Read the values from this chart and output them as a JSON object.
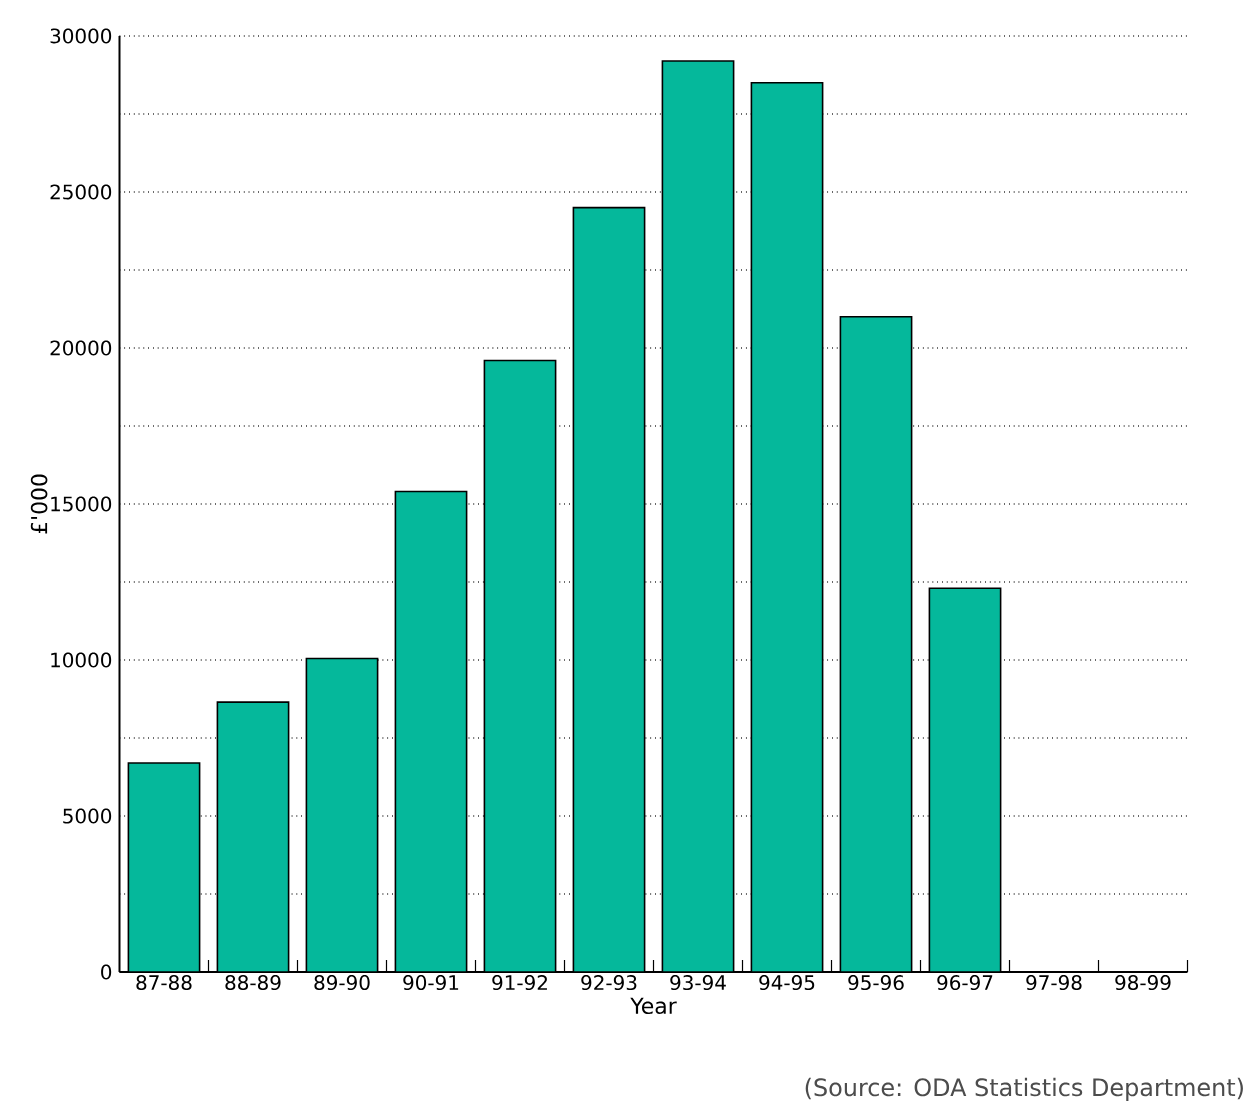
{
  "chart_data": {
    "type": "bar",
    "xlabel": "Year",
    "ylabel": "£'000",
    "categories": [
      "87-88",
      "88-89",
      "89-90",
      "90-91",
      "91-92",
      "92-93",
      "93-94",
      "94-95",
      "95-96",
      "96-97",
      "97-98",
      "98-99"
    ],
    "values": [
      6700,
      8650,
      10050,
      15400,
      19600,
      24500,
      29200,
      28500,
      21000,
      12300,
      0,
      0
    ],
    "color": "#05b89b",
    "ylim": [
      0,
      30000
    ],
    "yticks": [
      0,
      {
        "value": 2500,
        "label": null
      },
      5000,
      {
        "value": 7500,
        "label": null
      },
      10000,
      {
        "value": 12500,
        "label": null
      },
      15000,
      {
        "value": 17500,
        "label": null
      },
      20000,
      {
        "value": 22500,
        "label": null
      },
      25000,
      {
        "value": 27500,
        "label": null
      },
      30000
    ],
    "grid": "y",
    "annotations": [
      "(Source: ODA Statistics Department)"
    ]
  }
}
